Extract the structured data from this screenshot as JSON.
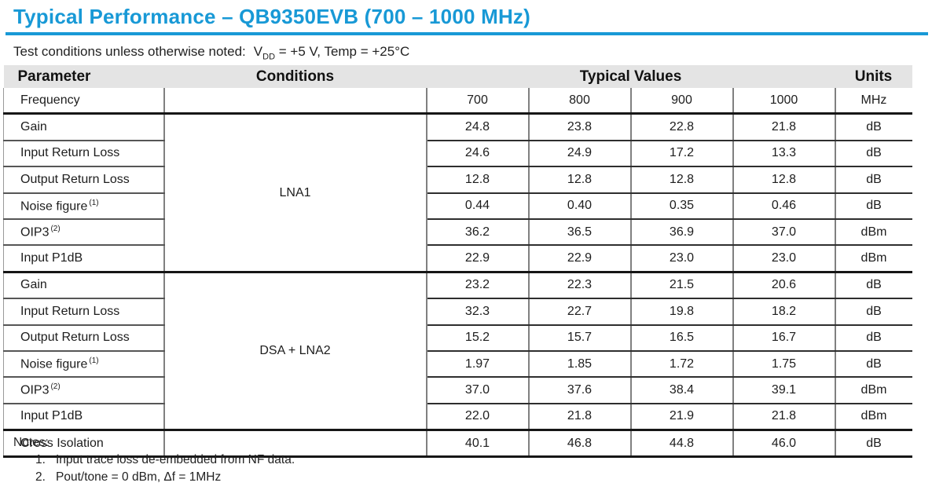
{
  "page": {
    "title": "Typical Performance – QB9350EVB (700 – 1000 MHz)",
    "test_conditions": {
      "prefix": "Test conditions unless otherwise noted:",
      "vdd_symbol": "V",
      "vdd_sub": "DD",
      "suffix": "= +5 V, Temp = +25°C"
    }
  },
  "table": {
    "columns": {
      "parameter": "Parameter",
      "conditions": "Conditions",
      "typical_values": "Typical Values",
      "units": "Units"
    },
    "rows": [
      {
        "parameter": "Frequency",
        "condition": "",
        "condition_rowspan": 1,
        "values": [
          "700",
          "800",
          "900",
          "1000"
        ],
        "unit": "MHz",
        "boundary_after": true
      },
      {
        "parameter": "Gain",
        "condition": "LNA1",
        "condition_rowspan": 6,
        "values": [
          "24.8",
          "23.8",
          "22.8",
          "21.8"
        ],
        "unit": "dB"
      },
      {
        "parameter": "Input Return Loss",
        "values": [
          "24.6",
          "24.9",
          "17.2",
          "13.3"
        ],
        "unit": "dB"
      },
      {
        "parameter": "Output Return Loss",
        "values": [
          "12.8",
          "12.8",
          "12.8",
          "12.8"
        ],
        "unit": "dB"
      },
      {
        "parameter": "Noise figure",
        "parameter_sup": "(1)",
        "values": [
          "0.44",
          "0.40",
          "0.35",
          "0.46"
        ],
        "unit": "dB"
      },
      {
        "parameter": "OIP3",
        "parameter_sup": "(2)",
        "values": [
          "36.2",
          "36.5",
          "36.9",
          "37.0"
        ],
        "unit": "dBm"
      },
      {
        "parameter": "Input P1dB",
        "values": [
          "22.9",
          "22.9",
          "23.0",
          "23.0"
        ],
        "unit": "dBm",
        "boundary_after": true
      },
      {
        "parameter": "Gain",
        "condition": "DSA + LNA2",
        "condition_rowspan": 6,
        "values": [
          "23.2",
          "22.3",
          "21.5",
          "20.6"
        ],
        "unit": "dB"
      },
      {
        "parameter": "Input Return Loss",
        "values": [
          "32.3",
          "22.7",
          "19.8",
          "18.2"
        ],
        "unit": "dB"
      },
      {
        "parameter": "Output Return Loss",
        "values": [
          "15.2",
          "15.7",
          "16.5",
          "16.7"
        ],
        "unit": "dB"
      },
      {
        "parameter": "Noise figure",
        "parameter_sup": "(1)",
        "values": [
          "1.97",
          "1.85",
          "1.72",
          "1.75"
        ],
        "unit": "dB"
      },
      {
        "parameter": "OIP3",
        "parameter_sup": "(2)",
        "values": [
          "37.0",
          "37.6",
          "38.4",
          "39.1"
        ],
        "unit": "dBm"
      },
      {
        "parameter": "Input P1dB",
        "values": [
          "22.0",
          "21.8",
          "21.9",
          "21.8"
        ],
        "unit": "dBm",
        "boundary_after": true
      },
      {
        "parameter": "Cross Isolation",
        "condition": "",
        "condition_rowspan": 1,
        "values": [
          "40.1",
          "46.8",
          "44.8",
          "46.0"
        ],
        "unit": "dB"
      }
    ]
  },
  "notes": {
    "label": "Notes:",
    "items": [
      {
        "num": "1.",
        "text": "Input trace loss de-embedded from NF data."
      },
      {
        "num": "2.",
        "text": "Pout/tone = 0 dBm, Δf = 1MHz"
      }
    ]
  },
  "colors": {
    "accent_blue": "#1899d6",
    "header_gray": "#e4e4e4",
    "grid_dark": "#2e2e2e",
    "grid_gray": "#808080"
  }
}
